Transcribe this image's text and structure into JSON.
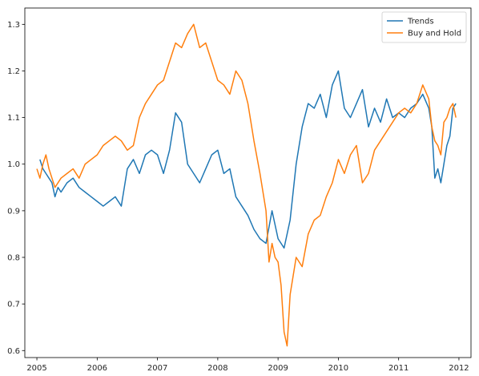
{
  "chart_data": {
    "type": "line",
    "title": "",
    "xlabel": "",
    "ylabel": "",
    "xlim": [
      2004.8,
      2012.2
    ],
    "ylim": [
      0.585,
      1.335
    ],
    "xticks": [
      2005,
      2006,
      2007,
      2008,
      2009,
      2010,
      2011,
      2012
    ],
    "xtick_labels": [
      "2005",
      "2006",
      "2007",
      "2008",
      "2009",
      "2010",
      "2011",
      "2012"
    ],
    "yticks": [
      0.6,
      0.7,
      0.8,
      0.9,
      1.0,
      1.1,
      1.2,
      1.3
    ],
    "ytick_labels": [
      "0.6",
      "0.7",
      "0.8",
      "0.9",
      "1.0",
      "1.1",
      "1.2",
      "1.3"
    ],
    "grid": false,
    "legend_position": "top-right",
    "series": [
      {
        "name": "Trends",
        "color": "#1f77b4",
        "x": [
          2005.05,
          2005.1,
          2005.15,
          2005.2,
          2005.25,
          2005.3,
          2005.35,
          2005.4,
          2005.5,
          2005.6,
          2005.7,
          2005.8,
          2005.9,
          2006.0,
          2006.1,
          2006.2,
          2006.3,
          2006.4,
          2006.5,
          2006.6,
          2006.7,
          2006.8,
          2006.9,
          2007.0,
          2007.1,
          2007.2,
          2007.3,
          2007.4,
          2007.5,
          2007.6,
          2007.7,
          2007.8,
          2007.9,
          2008.0,
          2008.1,
          2008.2,
          2008.3,
          2008.4,
          2008.5,
          2008.6,
          2008.7,
          2008.8,
          2008.9,
          2009.0,
          2009.1,
          2009.2,
          2009.3,
          2009.4,
          2009.5,
          2009.6,
          2009.7,
          2009.8,
          2009.9,
          2010.0,
          2010.1,
          2010.2,
          2010.3,
          2010.4,
          2010.5,
          2010.6,
          2010.7,
          2010.8,
          2010.9,
          2011.0,
          2011.1,
          2011.2,
          2011.3,
          2011.4,
          2011.5,
          2011.55,
          2011.6,
          2011.65,
          2011.7,
          2011.75,
          2011.8,
          2011.85,
          2011.9,
          2011.95
        ],
        "values": [
          1.01,
          0.99,
          0.98,
          0.97,
          0.96,
          0.93,
          0.95,
          0.94,
          0.96,
          0.97,
          0.95,
          0.94,
          0.93,
          0.92,
          0.91,
          0.92,
          0.93,
          0.91,
          0.99,
          1.01,
          0.98,
          1.02,
          1.03,
          1.02,
          0.98,
          1.03,
          1.11,
          1.09,
          1.0,
          0.98,
          0.96,
          0.99,
          1.02,
          1.03,
          0.98,
          0.99,
          0.93,
          0.91,
          0.89,
          0.86,
          0.84,
          0.83,
          0.9,
          0.84,
          0.82,
          0.88,
          1.0,
          1.08,
          1.13,
          1.12,
          1.15,
          1.1,
          1.17,
          1.2,
          1.12,
          1.1,
          1.13,
          1.16,
          1.08,
          1.12,
          1.09,
          1.14,
          1.1,
          1.11,
          1.1,
          1.12,
          1.13,
          1.15,
          1.12,
          1.08,
          0.97,
          0.99,
          0.96,
          1.0,
          1.04,
          1.06,
          1.12,
          1.13
        ]
      },
      {
        "name": "Buy and Hold",
        "color": "#ff7f0e",
        "x": [
          2005.0,
          2005.05,
          2005.1,
          2005.15,
          2005.2,
          2005.3,
          2005.4,
          2005.5,
          2005.6,
          2005.7,
          2005.8,
          2005.9,
          2006.0,
          2006.1,
          2006.2,
          2006.3,
          2006.4,
          2006.5,
          2006.6,
          2006.7,
          2006.8,
          2006.9,
          2007.0,
          2007.1,
          2007.2,
          2007.3,
          2007.4,
          2007.5,
          2007.6,
          2007.7,
          2007.8,
          2007.9,
          2008.0,
          2008.1,
          2008.2,
          2008.3,
          2008.4,
          2008.5,
          2008.6,
          2008.7,
          2008.8,
          2008.85,
          2008.9,
          2008.95,
          2009.0,
          2009.05,
          2009.1,
          2009.15,
          2009.2,
          2009.3,
          2009.4,
          2009.5,
          2009.6,
          2009.7,
          2009.8,
          2009.9,
          2010.0,
          2010.1,
          2010.2,
          2010.3,
          2010.4,
          2010.5,
          2010.6,
          2010.7,
          2010.8,
          2010.9,
          2011.0,
          2011.1,
          2011.2,
          2011.3,
          2011.4,
          2011.5,
          2011.55,
          2011.6,
          2011.65,
          2011.7,
          2011.75,
          2011.8,
          2011.85,
          2011.9,
          2011.95
        ],
        "values": [
          0.99,
          0.97,
          1.0,
          1.02,
          0.99,
          0.95,
          0.97,
          0.98,
          0.99,
          0.97,
          1.0,
          1.01,
          1.02,
          1.04,
          1.05,
          1.06,
          1.05,
          1.03,
          1.04,
          1.1,
          1.13,
          1.15,
          1.17,
          1.18,
          1.22,
          1.26,
          1.25,
          1.28,
          1.3,
          1.25,
          1.26,
          1.22,
          1.18,
          1.17,
          1.15,
          1.2,
          1.18,
          1.13,
          1.05,
          0.98,
          0.9,
          0.79,
          0.83,
          0.8,
          0.79,
          0.74,
          0.64,
          0.61,
          0.72,
          0.8,
          0.78,
          0.85,
          0.88,
          0.89,
          0.93,
          0.96,
          1.01,
          0.98,
          1.02,
          1.04,
          0.96,
          0.98,
          1.03,
          1.05,
          1.07,
          1.09,
          1.11,
          1.12,
          1.11,
          1.13,
          1.17,
          1.14,
          1.08,
          1.05,
          1.04,
          1.02,
          1.09,
          1.1,
          1.12,
          1.13,
          1.1
        ]
      }
    ]
  }
}
